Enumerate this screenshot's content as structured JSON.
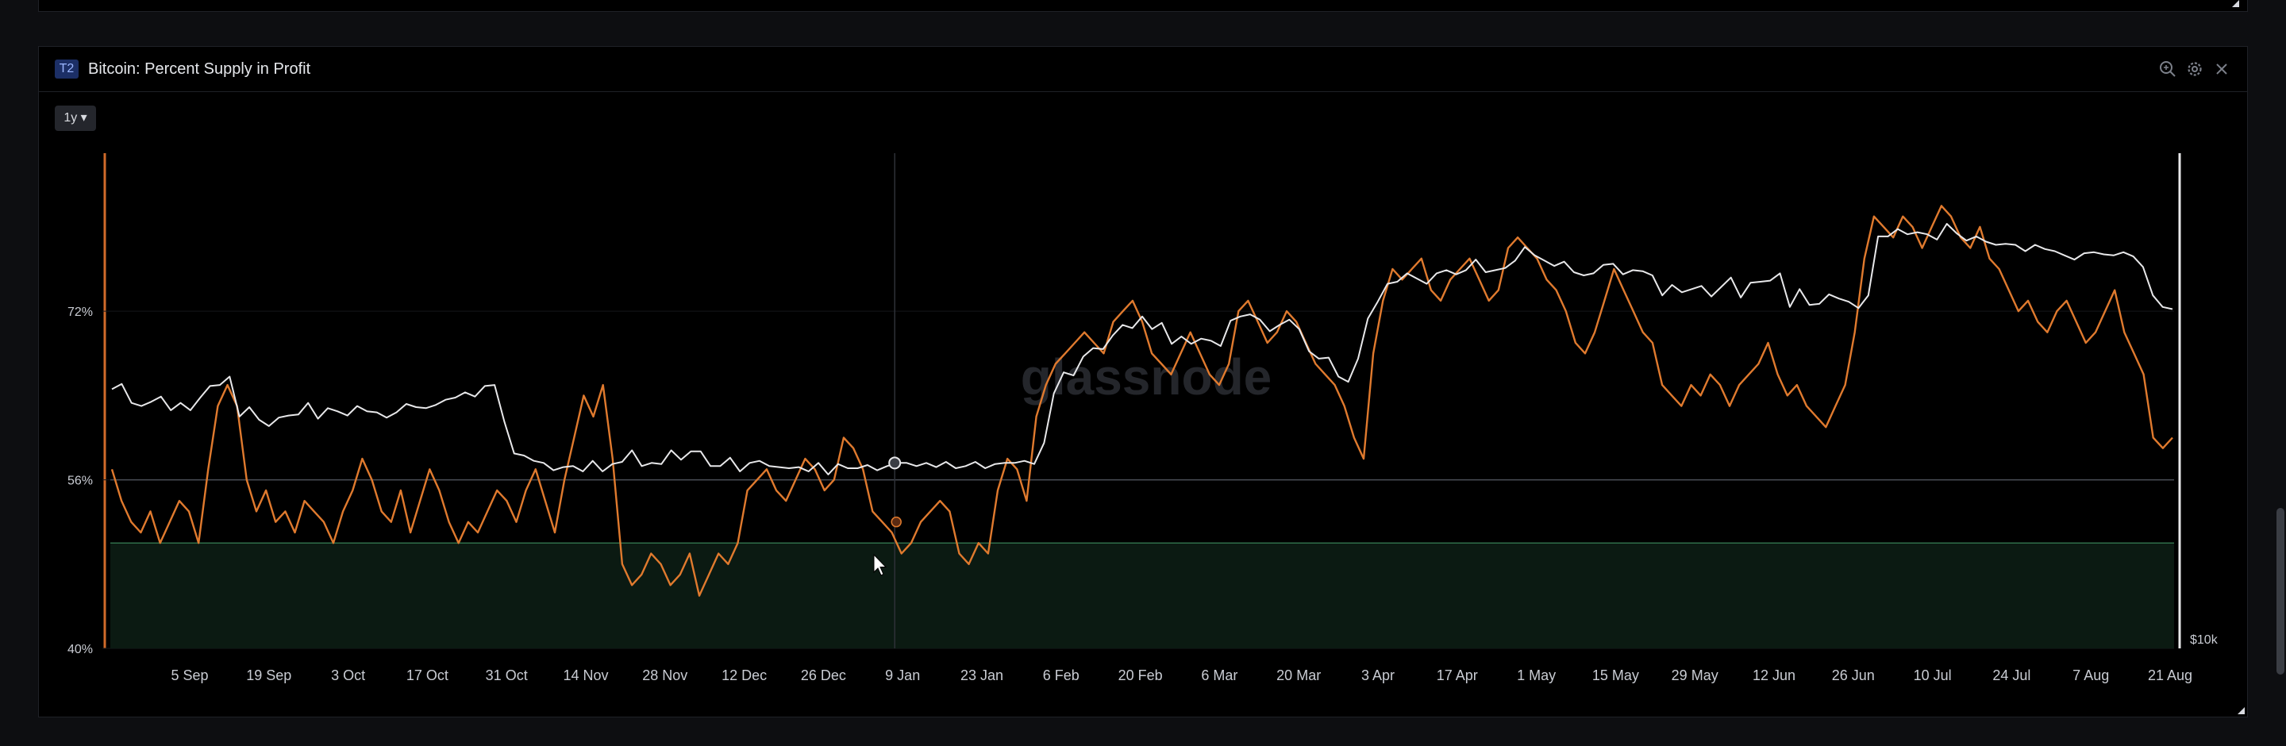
{
  "panel": {
    "badge": "T2",
    "title": "Bitcoin: Percent Supply in Profit",
    "range_label": "1y ▾",
    "watermark": "glassnode"
  },
  "colors": {
    "supply_line": "#e07a2e",
    "price_line": "#e8e8ea",
    "zone_fill": "#0b1a12",
    "zone_line": "#2f6e4a",
    "background": "#000000"
  },
  "icons": [
    "zoom-icon",
    "settings-icon",
    "close-icon",
    "resize-icon"
  ],
  "chart_data": {
    "type": "line",
    "title": "Bitcoin: Percent Supply in Profit",
    "x_tick_labels": [
      "5 Sep",
      "19 Sep",
      "3 Oct",
      "17 Oct",
      "31 Oct",
      "14 Nov",
      "28 Nov",
      "12 Dec",
      "26 Dec",
      "9 Jan",
      "23 Jan",
      "6 Feb",
      "20 Feb",
      "6 Mar",
      "20 Mar",
      "3 Apr",
      "17 Apr",
      "1 May",
      "15 May",
      "29 May",
      "12 Jun",
      "26 Jun",
      "10 Jul",
      "24 Jul",
      "7 Aug",
      "21 Aug"
    ],
    "y_tick_labels": [
      "72%",
      "56%",
      "40%"
    ],
    "y_left_range": [
      40,
      87
    ],
    "right_axis_label": "$10k",
    "hover_category_index": 9,
    "zones": [
      {
        "from": 40,
        "to": 50,
        "label": ""
      }
    ],
    "reference_lines": [
      56
    ],
    "series": [
      {
        "key": "supply",
        "axis": "left",
        "values": [
          57,
          54,
          52,
          51,
          53,
          50,
          52,
          54,
          53,
          50,
          57,
          63,
          65,
          63,
          56,
          53,
          55,
          52,
          53,
          51,
          54,
          53,
          52,
          50,
          53,
          55,
          58,
          56,
          53,
          52,
          55,
          51,
          54,
          57,
          55,
          52,
          50,
          52,
          51,
          53,
          55,
          54,
          52,
          55,
          57,
          54,
          51,
          56,
          60,
          64,
          62,
          65,
          58,
          48,
          46,
          47,
          49,
          48,
          46,
          47,
          49,
          45,
          47,
          49,
          48,
          50,
          55,
          56,
          57,
          55,
          54,
          56,
          58,
          57,
          55,
          56,
          60,
          59,
          57,
          53,
          52,
          51,
          49,
          50,
          52,
          53,
          54,
          53,
          49,
          48,
          50,
          49,
          55,
          58,
          57,
          54,
          62,
          65,
          67,
          68,
          69,
          70,
          69,
          68,
          71,
          72,
          73,
          71,
          68,
          67,
          66,
          68,
          70,
          68,
          66,
          65,
          67,
          72,
          73,
          71,
          69,
          70,
          72,
          71,
          69,
          67,
          66,
          65,
          63,
          60,
          58,
          68,
          73,
          76,
          75,
          76,
          77,
          74,
          73,
          75,
          76,
          77,
          75,
          73,
          74,
          78,
          79,
          78,
          77,
          75,
          74,
          72,
          69,
          68,
          70,
          73,
          76,
          74,
          72,
          70,
          69,
          65,
          64,
          63,
          65,
          64,
          66,
          65,
          63,
          65,
          66,
          67,
          69,
          66,
          64,
          65,
          63,
          62,
          61,
          63,
          65,
          70,
          77,
          81,
          80,
          79,
          81,
          80,
          78,
          80,
          82,
          81,
          79,
          78,
          80,
          77,
          76,
          74,
          72,
          73,
          71,
          70,
          72,
          73,
          71,
          69,
          70,
          72,
          74,
          70,
          68,
          66,
          60,
          59,
          60
        ],
        "name": ""
      },
      {
        "key": "price",
        "axis": "right",
        "values": [
          64.6,
          65.1,
          63.3,
          63,
          63.4,
          63.9,
          62.6,
          63.3,
          62.6,
          63.8,
          64.9,
          65,
          65.8,
          62,
          62.9,
          61.7,
          61.1,
          61.9,
          62.1,
          62.2,
          63.3,
          61.8,
          62.8,
          62.5,
          62.1,
          63,
          62.5,
          62.4,
          61.9,
          62.4,
          63.2,
          62.9,
          62.8,
          63.1,
          63.6,
          63.8,
          64.3,
          63.9,
          64.9,
          65,
          61.5,
          58.5,
          58.3,
          57.8,
          57.6,
          56.9,
          57.2,
          57.3,
          56.8,
          57.8,
          56.8,
          57.5,
          57.7,
          58.8,
          57.3,
          57.6,
          57.5,
          58.8,
          57.9,
          58.7,
          58.7,
          57.3,
          57.3,
          58.1,
          56.8,
          57.6,
          57.8,
          57.3,
          57.2,
          57.1,
          57.2,
          56.8,
          57.6,
          56.5,
          57.5,
          57.1,
          57.1,
          57.4,
          56.9,
          57.3,
          57.6,
          57.6,
          57.3,
          57.6,
          57.2,
          57.7,
          57.1,
          57.3,
          57.7,
          57.1,
          57.5,
          57.6,
          57.6,
          57.8,
          57.5,
          59.5,
          64.2,
          66.2,
          65.9,
          67.7,
          68.5,
          68.4,
          69.7,
          70.7,
          70.4,
          71.5,
          70.3,
          70.9,
          68.9,
          69.6,
          68.9,
          69.4,
          69.2,
          68.7,
          71.1,
          71.5,
          71.7,
          71.2,
          70.1,
          70.7,
          71.2,
          70.3,
          68.2,
          67.5,
          67.6,
          65.8,
          65.3,
          67.5,
          71.3,
          72.9,
          74.6,
          74.8,
          75.6,
          75.1,
          74.6,
          75.6,
          75.9,
          75.5,
          75.9,
          76.9,
          75.7,
          75.9,
          76.1,
          76.8,
          78.1,
          77.3,
          76.8,
          76.3,
          76.7,
          75.7,
          75.4,
          75.6,
          76.4,
          76.5,
          75.5,
          75.9,
          75.8,
          75.4,
          73.5,
          74.5,
          73.8,
          74.1,
          74.4,
          73.4,
          74.3,
          75.2,
          73.3,
          74.7,
          74.8,
          74.9,
          75.6,
          72.4,
          74.1,
          72.6,
          72.7,
          73.6,
          73.2,
          72.9,
          72.3,
          73.5,
          79.1,
          79.1,
          79.8,
          79.3,
          79.5,
          79.3,
          78.8,
          80.3,
          79.4,
          78.7,
          79.1,
          78.6,
          78.3,
          78.4,
          78.3,
          77.7,
          78.3,
          77.9,
          77.7,
          77.3,
          76.9,
          77.5,
          77.6,
          77.4,
          77.3,
          77.6,
          77.2,
          76.2,
          73.5,
          72.4,
          72.2
        ],
        "name": ""
      }
    ]
  }
}
